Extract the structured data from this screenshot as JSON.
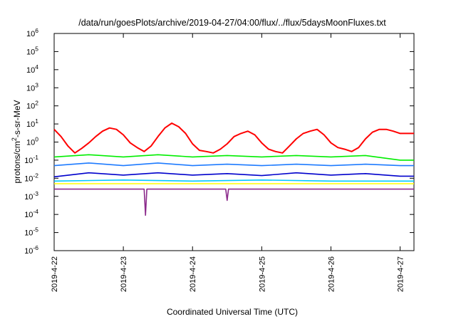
{
  "chart_data": {
    "type": "line",
    "title": "/data/run/goesPlots/archive/2019-04-27/04:00/flux/../flux/5daysMoonFluxes.txt",
    "xlabel": "Coordinated Universal Time (UTC)",
    "ylabel_parts": [
      "protons/cm",
      "2",
      "-s-sr-MeV"
    ],
    "yscale": "log",
    "ylim_exp": [
      -6,
      6
    ],
    "y_ticks": [
      {
        "label": "10",
        "exp": "-6",
        "value": -6
      },
      {
        "label": "10",
        "exp": "-5",
        "value": -5
      },
      {
        "label": "10",
        "exp": "-4",
        "value": -4
      },
      {
        "label": "10",
        "exp": "-3",
        "value": -3
      },
      {
        "label": "10",
        "exp": "-2",
        "value": -2
      },
      {
        "label": "10",
        "exp": "-1",
        "value": -1
      },
      {
        "label": "10",
        "exp": "0",
        "value": 0
      },
      {
        "label": "10",
        "exp": "1",
        "value": 1
      },
      {
        "label": "10",
        "exp": "2",
        "value": 2
      },
      {
        "label": "10",
        "exp": "3",
        "value": 3
      },
      {
        "label": "10",
        "exp": "4",
        "value": 4
      },
      {
        "label": "10",
        "exp": "5",
        "value": 5
      },
      {
        "label": "10",
        "exp": "6",
        "value": 6
      }
    ],
    "x_ticks": [
      "2019-4-22",
      "2019-4-23",
      "2019-4-24",
      "2019-4-25",
      "2019-4-26",
      "2019-4-27"
    ],
    "xlim_days": [
      0,
      5.2
    ],
    "grid": false,
    "legend": "none",
    "series": [
      {
        "color": "#ff0000",
        "points": [
          [
            0,
            5
          ],
          [
            0.1,
            2
          ],
          [
            0.2,
            0.6
          ],
          [
            0.3,
            0.25
          ],
          [
            0.4,
            0.45
          ],
          [
            0.5,
            0.9
          ],
          [
            0.6,
            2
          ],
          [
            0.7,
            4
          ],
          [
            0.8,
            6
          ],
          [
            0.9,
            5
          ],
          [
            1.0,
            2.5
          ],
          [
            1.1,
            0.9
          ],
          [
            1.2,
            0.5
          ],
          [
            1.3,
            0.3
          ],
          [
            1.4,
            0.6
          ],
          [
            1.5,
            2
          ],
          [
            1.6,
            6
          ],
          [
            1.7,
            11
          ],
          [
            1.8,
            7
          ],
          [
            1.9,
            3
          ],
          [
            2.0,
            0.8
          ],
          [
            2.1,
            0.35
          ],
          [
            2.2,
            0.3
          ],
          [
            2.3,
            0.25
          ],
          [
            2.4,
            0.4
          ],
          [
            2.5,
            0.8
          ],
          [
            2.6,
            2
          ],
          [
            2.7,
            3
          ],
          [
            2.8,
            4
          ],
          [
            2.9,
            2.5
          ],
          [
            3.0,
            0.9
          ],
          [
            3.1,
            0.4
          ],
          [
            3.2,
            0.3
          ],
          [
            3.3,
            0.25
          ],
          [
            3.4,
            0.6
          ],
          [
            3.5,
            1.5
          ],
          [
            3.6,
            3
          ],
          [
            3.7,
            4
          ],
          [
            3.8,
            5
          ],
          [
            3.9,
            2.5
          ],
          [
            4.0,
            0.9
          ],
          [
            4.1,
            0.5
          ],
          [
            4.2,
            0.4
          ],
          [
            4.3,
            0.3
          ],
          [
            4.4,
            0.5
          ],
          [
            4.5,
            1.5
          ],
          [
            4.6,
            3.5
          ],
          [
            4.7,
            5
          ],
          [
            4.8,
            5
          ],
          [
            4.9,
            4
          ],
          [
            5.0,
            3
          ],
          [
            5.2,
            3
          ]
        ]
      },
      {
        "color": "#00ee00",
        "points": [
          [
            0,
            0.15
          ],
          [
            0.5,
            0.2
          ],
          [
            1.0,
            0.15
          ],
          [
            1.5,
            0.2
          ],
          [
            2.0,
            0.15
          ],
          [
            2.5,
            0.18
          ],
          [
            3.0,
            0.15
          ],
          [
            3.5,
            0.18
          ],
          [
            4.0,
            0.15
          ],
          [
            4.5,
            0.18
          ],
          [
            5.0,
            0.1
          ],
          [
            5.2,
            0.1
          ]
        ]
      },
      {
        "color": "#1e7bff",
        "points": [
          [
            0,
            0.05
          ],
          [
            0.5,
            0.07
          ],
          [
            1.0,
            0.05
          ],
          [
            1.5,
            0.07
          ],
          [
            2.0,
            0.05
          ],
          [
            2.5,
            0.06
          ],
          [
            3.0,
            0.05
          ],
          [
            3.5,
            0.06
          ],
          [
            4.0,
            0.05
          ],
          [
            4.5,
            0.06
          ],
          [
            5.0,
            0.05
          ],
          [
            5.2,
            0.05
          ]
        ]
      },
      {
        "color": "#0000cc",
        "points": [
          [
            0,
            0.012
          ],
          [
            0.5,
            0.02
          ],
          [
            1.0,
            0.015
          ],
          [
            1.5,
            0.02
          ],
          [
            2.0,
            0.015
          ],
          [
            2.5,
            0.018
          ],
          [
            3.0,
            0.014
          ],
          [
            3.5,
            0.02
          ],
          [
            4.0,
            0.015
          ],
          [
            4.5,
            0.018
          ],
          [
            5.0,
            0.013
          ],
          [
            5.2,
            0.013
          ]
        ]
      },
      {
        "color": "#00c8ff",
        "points": [
          [
            0,
            0.007
          ],
          [
            1.0,
            0.008
          ],
          [
            2.0,
            0.007
          ],
          [
            3.0,
            0.008
          ],
          [
            4.0,
            0.007
          ],
          [
            5.0,
            0.007
          ],
          [
            5.2,
            0.007
          ]
        ]
      },
      {
        "color": "#ffff00",
        "points": [
          [
            0,
            0.005
          ],
          [
            5.2,
            0.005
          ]
        ]
      },
      {
        "color": "#8b2a8b",
        "points": [
          [
            0,
            0.0025
          ],
          [
            1.0,
            0.0025
          ],
          [
            1.3,
            0.0025
          ],
          [
            1.32,
            9e-05
          ],
          [
            1.34,
            0.0025
          ],
          [
            2.0,
            0.0025
          ],
          [
            2.48,
            0.0025
          ],
          [
            2.5,
            0.0006
          ],
          [
            2.52,
            0.0025
          ],
          [
            3.0,
            0.0025
          ],
          [
            4.0,
            0.0025
          ],
          [
            5.0,
            0.0025
          ],
          [
            5.2,
            0.0025
          ]
        ]
      }
    ]
  }
}
